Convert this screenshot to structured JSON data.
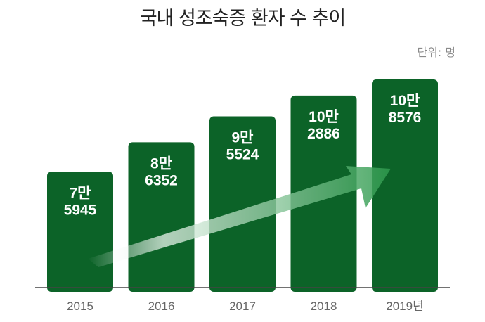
{
  "title": "국내 성조숙증 환자 수 추이",
  "unit_label": "단위: 명",
  "colors": {
    "bar": "#0c6328",
    "axis": "#444444",
    "arrow": "#2e9a4d"
  },
  "chart_data": {
    "type": "bar",
    "title": "국내 성조숙증 환자 수 추이",
    "unit": "단위: 명",
    "categories": [
      "2015",
      "2016",
      "2017",
      "2018",
      "2019년"
    ],
    "values": [
      75945,
      86352,
      95524,
      102886,
      108576
    ],
    "value_labels": [
      [
        "7만",
        "5945"
      ],
      [
        "8만",
        "6352"
      ],
      [
        "9만",
        "5524"
      ],
      [
        "10만",
        "2886"
      ],
      [
        "10만",
        "8576"
      ]
    ],
    "annotation": "upward-trend-arrow",
    "grid": false,
    "legend": "none"
  }
}
